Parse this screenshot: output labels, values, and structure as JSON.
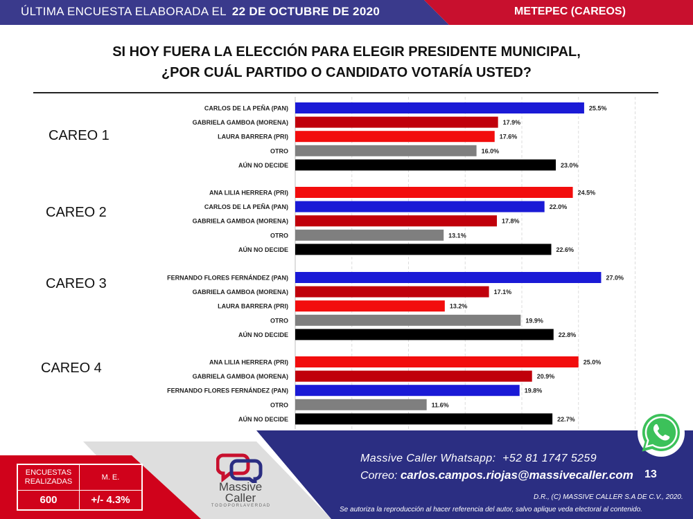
{
  "header": {
    "left_text": "ÚLTIMA ENCUESTA ELABORADA EL",
    "date": "22 DE OCTUBRE DE 2020",
    "right_text": "METEPEC (CAREOS)"
  },
  "question": {
    "line1": "SI HOY FUERA LA ELECCIÓN PARA ELEGIR PRESIDENTE MUNICIPAL,",
    "line2": "¿POR CUÁL PARTIDO O CANDIDATO VOTARÍA USTED?"
  },
  "colors": {
    "PAN": "#1a1ad6",
    "MORENA": "#c0000b",
    "PRI": "#f20d0d",
    "OTRO": "#7f7f7f",
    "NO_DECIDE": "#000000",
    "header_blue": "#3a3a8c",
    "header_red": "#c8102e",
    "footer_blue": "#2b2e82",
    "footer_red": "#d0021b"
  },
  "chart_data": {
    "type": "bar",
    "orientation": "horizontal",
    "xlim": [
      0,
      30
    ],
    "grid": true,
    "groups": [
      {
        "label": "CAREO 1",
        "bars": [
          {
            "category": "CARLOS DE LA PEÑA (PAN)",
            "value": 25.5,
            "value_label": "25.5%",
            "party": "PAN"
          },
          {
            "category": "GABRIELA GAMBOA (MORENA)",
            "value": 17.9,
            "value_label": "17.9%",
            "party": "MORENA"
          },
          {
            "category": "LAURA BARRERA (PRI)",
            "value": 17.6,
            "value_label": "17.6%",
            "party": "PRI"
          },
          {
            "category": "OTRO",
            "value": 16.0,
            "value_label": "16.0%",
            "party": "OTRO"
          },
          {
            "category": "AÚN NO DECIDE",
            "value": 23.0,
            "value_label": "23.0%",
            "party": "NO_DECIDE"
          }
        ]
      },
      {
        "label": "CAREO 2",
        "bars": [
          {
            "category": "ANA LILIA HERRERA (PRI)",
            "value": 24.5,
            "value_label": "24.5%",
            "party": "PRI"
          },
          {
            "category": "CARLOS DE LA PEÑA (PAN)",
            "value": 22.0,
            "value_label": "22.0%",
            "party": "PAN"
          },
          {
            "category": "GABRIELA GAMBOA (MORENA)",
            "value": 17.8,
            "value_label": "17.8%",
            "party": "MORENA"
          },
          {
            "category": "OTRO",
            "value": 13.1,
            "value_label": "13.1%",
            "party": "OTRO"
          },
          {
            "category": "AÚN NO DECIDE",
            "value": 22.6,
            "value_label": "22.6%",
            "party": "NO_DECIDE"
          }
        ]
      },
      {
        "label": "CAREO 3",
        "bars": [
          {
            "category": "FERNANDO FLORES FERNÁNDEZ (PAN)",
            "value": 27.0,
            "value_label": "27.0%",
            "party": "PAN"
          },
          {
            "category": "GABRIELA GAMBOA (MORENA)",
            "value": 17.1,
            "value_label": "17.1%",
            "party": "MORENA"
          },
          {
            "category": "LAURA BARRERA (PRI)",
            "value": 13.2,
            "value_label": "13.2%",
            "party": "PRI"
          },
          {
            "category": "OTRO",
            "value": 19.9,
            "value_label": "19.9%",
            "party": "OTRO"
          },
          {
            "category": "AÚN NO DECIDE",
            "value": 22.8,
            "value_label": "22.8%",
            "party": "NO_DECIDE"
          }
        ]
      },
      {
        "label": "CAREO 4",
        "bars": [
          {
            "category": "ANA LILIA HERRERA (PRI)",
            "value": 25.0,
            "value_label": "25.0%",
            "party": "PRI"
          },
          {
            "category": "GABRIELA GAMBOA (MORENA)",
            "value": 20.9,
            "value_label": "20.9%",
            "party": "MORENA"
          },
          {
            "category": "FERNANDO FLORES FERNÁNDEZ (PAN)",
            "value": 19.8,
            "value_label": "19.8%",
            "party": "PAN"
          },
          {
            "category": "OTRO",
            "value": 11.6,
            "value_label": "11.6%",
            "party": "OTRO"
          },
          {
            "category": "AÚN NO DECIDE",
            "value": 22.7,
            "value_label": "22.7%",
            "party": "NO_DECIDE"
          }
        ]
      }
    ]
  },
  "footer": {
    "encuestas_label": "ENCUESTAS REALIZADAS",
    "me_label": "M. E.",
    "encuestas_value": "600",
    "me_value": "+/- 4.3%",
    "logo_text": "Massive Caller",
    "logo_subtext": "T O D O  P O R  L A  V E R D A D",
    "whatsapp_label": "Massive Caller Whatsapp:",
    "whatsapp_number": "+52 81 1747 5259",
    "email_label": "Correo:",
    "email": "carlos.campos.riojas@massivecaller.com",
    "page_number": "13",
    "copyright": "D.R., (C) MASSIVE CALLER S.A DE C.V., 2020.",
    "notice": "Se autoriza la reproducción al hacer referencia del autor, salvo aplique veda electoral al contenido."
  }
}
